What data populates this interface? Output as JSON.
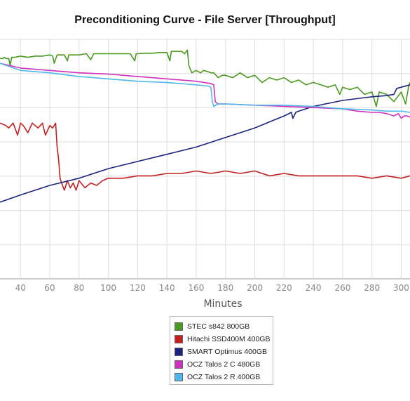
{
  "chart_data": {
    "type": "line",
    "title": "Preconditioning Curve - File Server [Throughput]",
    "xlabel": "Minutes",
    "ylabel": "",
    "xlim": [
      26,
      306
    ],
    "ylim": [
      0,
      100
    ],
    "xticks": [
      40,
      60,
      80,
      100,
      120,
      140,
      160,
      180,
      200,
      220,
      240,
      260,
      280,
      300
    ],
    "grid": true,
    "legend_position": "bottom-center",
    "series": [
      {
        "name": "STEC s842 800GB",
        "color": "#4a9a1e",
        "x": [
          26,
          28,
          29,
          30,
          32,
          33,
          34,
          36,
          40,
          45,
          50,
          55,
          60,
          62,
          63,
          65,
          68,
          70,
          72,
          73,
          75,
          80,
          85,
          88,
          90,
          95,
          100,
          105,
          110,
          115,
          118,
          119,
          120,
          125,
          130,
          135,
          140,
          142,
          143,
          145,
          148,
          150,
          152,
          154,
          155,
          157,
          160,
          163,
          165,
          168,
          170,
          172,
          175,
          178,
          180,
          185,
          190,
          195,
          200,
          205,
          210,
          215,
          220,
          225,
          230,
          235,
          240,
          245,
          250,
          255,
          258,
          260,
          265,
          270,
          275,
          280,
          283,
          285,
          290,
          295,
          300,
          303,
          305,
          306
        ],
        "y": [
          92,
          92,
          92.5,
          92,
          92,
          89,
          92.5,
          92.5,
          93,
          92.5,
          93,
          93,
          93.5,
          93,
          90,
          93.5,
          93.5,
          93.5,
          91,
          93.5,
          93.5,
          93.5,
          94,
          91.5,
          94,
          94,
          94,
          94,
          94,
          94,
          91,
          94,
          94,
          94.2,
          94.2,
          94.5,
          94.5,
          91,
          95,
          95,
          95,
          95,
          94,
          95.5,
          89,
          86,
          87,
          86,
          87,
          86.5,
          86,
          86,
          84,
          85,
          85,
          84,
          86,
          84,
          85,
          82,
          84,
          83,
          84,
          82,
          83,
          81,
          82,
          81,
          80,
          81,
          77,
          80,
          79,
          80,
          77,
          78,
          72,
          78,
          77,
          74,
          78,
          73,
          80,
          82
        ]
      },
      {
        "name": "Hitachi SSD400M 400GB",
        "color": "#c42020",
        "x": [
          26,
          30,
          32,
          35,
          38,
          40,
          42,
          45,
          48,
          50,
          52,
          55,
          57,
          60,
          62,
          64,
          65,
          66,
          67,
          68,
          70,
          72,
          74,
          76,
          78,
          80,
          84,
          88,
          92,
          96,
          100,
          110,
          120,
          130,
          140,
          150,
          160,
          170,
          180,
          190,
          200,
          210,
          220,
          230,
          240,
          250,
          260,
          270,
          280,
          290,
          300,
          306
        ],
        "y": [
          65,
          64,
          63,
          65,
          60,
          65,
          64,
          61,
          65,
          64,
          63,
          65,
          60,
          64,
          63,
          65,
          55,
          50,
          42,
          40,
          37,
          41,
          38,
          40,
          37,
          41,
          38,
          40,
          39,
          41,
          42,
          42,
          43,
          43,
          44,
          44,
          45,
          44,
          45,
          44,
          45,
          43,
          44,
          43,
          43,
          43,
          43,
          43,
          42,
          43,
          42,
          43
        ]
      },
      {
        "name": "SMART Optimus 400GB",
        "color": "#1a237e",
        "x": [
          26,
          40,
          60,
          80,
          100,
          120,
          140,
          160,
          180,
          200,
          220,
          225,
          226,
          228,
          230,
          240,
          260,
          280,
          290,
          295,
          297,
          300,
          306
        ],
        "y": [
          32,
          35,
          39,
          42,
          46,
          49,
          52,
          55,
          59,
          63,
          68,
          69.5,
          67,
          69.5,
          70,
          72,
          74.5,
          76,
          76.5,
          77,
          79.5,
          80,
          81
        ]
      },
      {
        "name": "OCZ Talos 2 C 480GB",
        "color": "#d030c0",
        "x": [
          26,
          40,
          60,
          80,
          100,
          120,
          140,
          160,
          170,
          172,
          173,
          175,
          180,
          200,
          220,
          240,
          260,
          270,
          280,
          285,
          290,
          295,
          298,
          300,
          302,
          304,
          306
        ],
        "y": [
          90,
          88,
          87,
          86,
          85.5,
          84.5,
          83.5,
          82.5,
          81.5,
          81,
          74,
          73,
          73,
          72.5,
          72,
          71.5,
          71,
          70,
          69.5,
          69.5,
          69,
          68,
          69,
          67,
          68,
          68,
          67.5
        ]
      },
      {
        "name": "OCZ Talos 2 R 400GB",
        "color": "#50b8e8",
        "x": [
          26,
          40,
          60,
          80,
          100,
          120,
          140,
          160,
          168,
          170,
          171,
          172,
          175,
          180,
          200,
          220,
          240,
          260,
          280,
          290,
          300,
          306
        ],
        "y": [
          90,
          87,
          86,
          84.5,
          83.5,
          82.5,
          82,
          81,
          80.5,
          80,
          74,
          72,
          73,
          73,
          72.5,
          72.5,
          72,
          71,
          70.5,
          70,
          70,
          69.5
        ]
      }
    ]
  }
}
